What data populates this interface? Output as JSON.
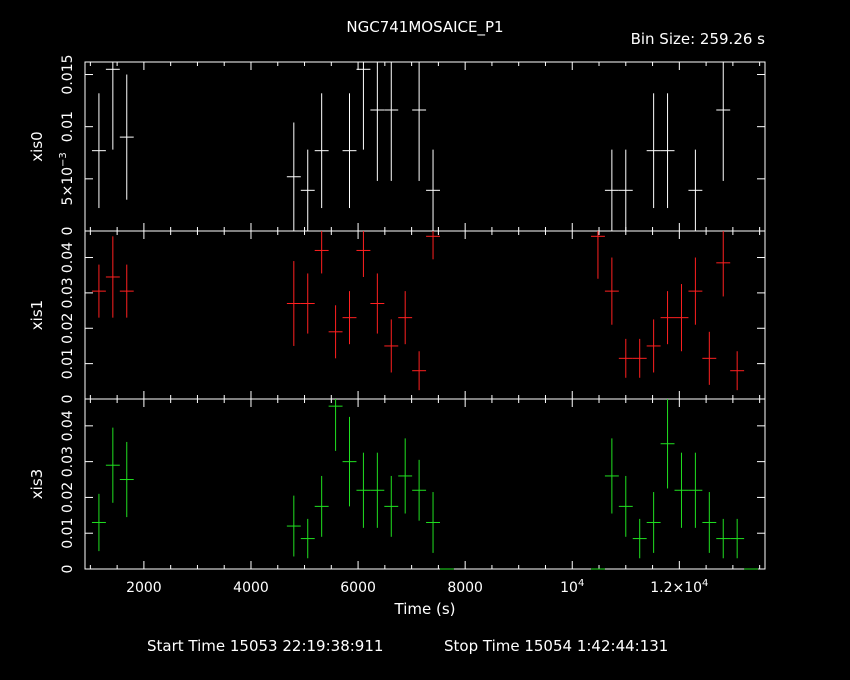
{
  "header": {
    "title": "NGC741MOSAICE_P1",
    "bin_size": "Bin Size: 259.26 s"
  },
  "footer": {
    "start_time": "Start Time 15053 22:19:38:911",
    "stop_time": "Stop Time 15054  1:42:44:131"
  },
  "colors": {
    "xis0": "#ffffff",
    "xis1": "#ff2020",
    "xis3": "#20e020"
  },
  "chart_data": {
    "type": "scatter",
    "xlabel": "Time (s)",
    "xlim": [
      900,
      13600
    ],
    "x_ticks": [
      {
        "value": 2000,
        "label": "2000"
      },
      {
        "value": 4000,
        "label": "4000"
      },
      {
        "value": 6000,
        "label": "6000"
      },
      {
        "value": 8000,
        "label": "8000"
      },
      {
        "value": 10000,
        "label": "10",
        "sup": "4"
      },
      {
        "value": 12000,
        "label": "1.2×10",
        "sup": "4"
      }
    ],
    "xerr": 130,
    "panels": [
      {
        "name": "xis0",
        "ylabel": "xis0",
        "color": "#ffffff",
        "ylim": [
          0,
          0.0162
        ],
        "y_ticks": [
          {
            "value": 0,
            "label": "0"
          },
          {
            "value": 0.005,
            "label": "5×10",
            "sup": "−3"
          },
          {
            "value": 0.01,
            "label": "0.01"
          },
          {
            "value": 0.015,
            "label": "0.015"
          }
        ],
        "points": [
          {
            "x": 1160,
            "y": 0.0077,
            "err": 0.0055
          },
          {
            "x": 1420,
            "y": 0.0155,
            "err": 0.0077
          },
          {
            "x": 1680,
            "y": 0.009,
            "err": 0.006
          },
          {
            "x": 4800,
            "y": 0.0052,
            "err": 0.0052
          },
          {
            "x": 5060,
            "y": 0.0039,
            "err": 0.0039
          },
          {
            "x": 5320,
            "y": 0.0077,
            "err": 0.0055
          },
          {
            "x": 5580,
            "y": 0.0,
            "err": 0.0
          },
          {
            "x": 5840,
            "y": 0.0077,
            "err": 0.0055
          },
          {
            "x": 6100,
            "y": 0.0155,
            "err": 0.0077
          },
          {
            "x": 6360,
            "y": 0.0116,
            "err": 0.0068
          },
          {
            "x": 6620,
            "y": 0.0116,
            "err": 0.0068
          },
          {
            "x": 6880,
            "y": 0.0,
            "err": 0.0
          },
          {
            "x": 7140,
            "y": 0.0116,
            "err": 0.0068
          },
          {
            "x": 7400,
            "y": 0.0039,
            "err": 0.0039
          },
          {
            "x": 7660,
            "y": 0.0,
            "err": 0.0
          },
          {
            "x": 10480,
            "y": 0.0,
            "err": 0.0
          },
          {
            "x": 10740,
            "y": 0.0039,
            "err": 0.0039
          },
          {
            "x": 11000,
            "y": 0.0039,
            "err": 0.0039
          },
          {
            "x": 11260,
            "y": 0.0,
            "err": 0.0
          },
          {
            "x": 11520,
            "y": 0.0077,
            "err": 0.0055
          },
          {
            "x": 11780,
            "y": 0.0077,
            "err": 0.0055
          },
          {
            "x": 12040,
            "y": 0.0,
            "err": 0.0
          },
          {
            "x": 12300,
            "y": 0.0039,
            "err": 0.0039
          },
          {
            "x": 12560,
            "y": 0.0,
            "err": 0.0
          },
          {
            "x": 12820,
            "y": 0.0116,
            "err": 0.0068
          },
          {
            "x": 13080,
            "y": 0.0,
            "err": 0.0
          },
          {
            "x": 13340,
            "y": 0.0,
            "err": 0.0
          }
        ]
      },
      {
        "name": "xis1",
        "ylabel": "xis1",
        "color": "#ff2020",
        "ylim": [
          0,
          0.0475
        ],
        "y_ticks": [
          {
            "value": 0.0,
            "label": "0"
          },
          {
            "value": 0.01,
            "label": "0.01"
          },
          {
            "value": 0.02,
            "label": "0.02"
          },
          {
            "value": 0.03,
            "label": "0.03"
          },
          {
            "value": 0.04,
            "label": "0.04"
          }
        ],
        "points": [
          {
            "x": 1160,
            "y": 0.0305,
            "err": 0.0075
          },
          {
            "x": 1420,
            "y": 0.0345,
            "err": 0.0115
          },
          {
            "x": 1680,
            "y": 0.0305,
            "err": 0.0075
          },
          {
            "x": 4800,
            "y": 0.027,
            "err": 0.012
          },
          {
            "x": 5060,
            "y": 0.027,
            "err": 0.0085
          },
          {
            "x": 5320,
            "y": 0.042,
            "err": 0.0065
          },
          {
            "x": 5580,
            "y": 0.019,
            "err": 0.0075
          },
          {
            "x": 5840,
            "y": 0.023,
            "err": 0.0075
          },
          {
            "x": 6100,
            "y": 0.042,
            "err": 0.0075
          },
          {
            "x": 6360,
            "y": 0.027,
            "err": 0.0085
          },
          {
            "x": 6620,
            "y": 0.015,
            "err": 0.0075
          },
          {
            "x": 6880,
            "y": 0.023,
            "err": 0.0075
          },
          {
            "x": 7140,
            "y": 0.008,
            "err": 0.0055
          },
          {
            "x": 7400,
            "y": 0.046,
            "err": 0.0065
          },
          {
            "x": 7660,
            "y": 0.0,
            "err": 0.0
          },
          {
            "x": 10480,
            "y": 0.046,
            "err": 0.012
          },
          {
            "x": 10740,
            "y": 0.0305,
            "err": 0.0095
          },
          {
            "x": 11000,
            "y": 0.0115,
            "err": 0.0055
          },
          {
            "x": 11260,
            "y": 0.0115,
            "err": 0.0055
          },
          {
            "x": 11520,
            "y": 0.015,
            "err": 0.0075
          },
          {
            "x": 11780,
            "y": 0.023,
            "err": 0.0075
          },
          {
            "x": 12040,
            "y": 0.023,
            "err": 0.0095
          },
          {
            "x": 12300,
            "y": 0.0305,
            "err": 0.0095
          },
          {
            "x": 12560,
            "y": 0.0115,
            "err": 0.0075
          },
          {
            "x": 12820,
            "y": 0.0385,
            "err": 0.0095
          },
          {
            "x": 13080,
            "y": 0.008,
            "err": 0.0055
          },
          {
            "x": 13340,
            "y": 0.0,
            "err": 0.0
          }
        ]
      },
      {
        "name": "xis3",
        "ylabel": "xis3",
        "color": "#20e020",
        "ylim": [
          0,
          0.0475
        ],
        "y_ticks": [
          {
            "value": 0.0,
            "label": "0"
          },
          {
            "value": 0.01,
            "label": "0.01"
          },
          {
            "value": 0.02,
            "label": "0.02"
          },
          {
            "value": 0.03,
            "label": "0.03"
          },
          {
            "value": 0.04,
            "label": "0.04"
          }
        ],
        "points": [
          {
            "x": 1160,
            "y": 0.013,
            "err": 0.008
          },
          {
            "x": 1420,
            "y": 0.029,
            "err": 0.0105
          },
          {
            "x": 1680,
            "y": 0.025,
            "err": 0.0105
          },
          {
            "x": 4800,
            "y": 0.012,
            "err": 0.0085
          },
          {
            "x": 5060,
            "y": 0.0085,
            "err": 0.0055
          },
          {
            "x": 5320,
            "y": 0.0175,
            "err": 0.0085
          },
          {
            "x": 5580,
            "y": 0.0455,
            "err": 0.0125
          },
          {
            "x": 5840,
            "y": 0.03,
            "err": 0.0125
          },
          {
            "x": 6100,
            "y": 0.022,
            "err": 0.0105
          },
          {
            "x": 6360,
            "y": 0.022,
            "err": 0.0105
          },
          {
            "x": 6620,
            "y": 0.0175,
            "err": 0.0085
          },
          {
            "x": 6880,
            "y": 0.026,
            "err": 0.0105
          },
          {
            "x": 7140,
            "y": 0.022,
            "err": 0.0085
          },
          {
            "x": 7400,
            "y": 0.013,
            "err": 0.0085
          },
          {
            "x": 7660,
            "y": 0.0,
            "err": 0.0
          },
          {
            "x": 10480,
            "y": 0.0,
            "err": 0.0
          },
          {
            "x": 10740,
            "y": 0.026,
            "err": 0.0105
          },
          {
            "x": 11000,
            "y": 0.0175,
            "err": 0.0085
          },
          {
            "x": 11260,
            "y": 0.0085,
            "err": 0.0055
          },
          {
            "x": 11520,
            "y": 0.013,
            "err": 0.0085
          },
          {
            "x": 11780,
            "y": 0.035,
            "err": 0.0125
          },
          {
            "x": 12040,
            "y": 0.022,
            "err": 0.0105
          },
          {
            "x": 12300,
            "y": 0.022,
            "err": 0.0105
          },
          {
            "x": 12560,
            "y": 0.013,
            "err": 0.0085
          },
          {
            "x": 12820,
            "y": 0.0085,
            "err": 0.0055
          },
          {
            "x": 13080,
            "y": 0.0085,
            "err": 0.0055
          },
          {
            "x": 13340,
            "y": 0.0,
            "err": 0.0
          }
        ]
      }
    ]
  }
}
